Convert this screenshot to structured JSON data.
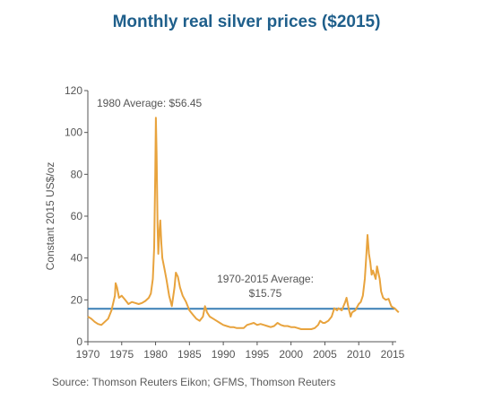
{
  "title": "Monthly real silver prices ($2015)",
  "source": "Source: Thomson Reuters Eikon; GFMS, Thomson Reuters",
  "colors": {
    "title": "#1f5f8b",
    "price_line": "#e8a33d",
    "average_line": "#3a7fb5",
    "axis": "#555555"
  },
  "chart_data": {
    "type": "line",
    "ylabel": "Constant 2015 US$/oz",
    "xlabel": "",
    "xlim": [
      1970,
      2016
    ],
    "ylim": [
      0,
      120
    ],
    "x_ticks": [
      1970,
      1975,
      1980,
      1985,
      1990,
      1995,
      2000,
      2005,
      2010,
      2015
    ],
    "y_ticks": [
      0,
      20,
      40,
      60,
      80,
      100,
      120
    ],
    "grid": false,
    "series": [
      {
        "values": [
          [
            1970.0,
            12.0
          ],
          [
            1970.5,
            11.0
          ],
          [
            1971.0,
            9.5
          ],
          [
            1971.5,
            8.5
          ],
          [
            1972.0,
            8.0
          ],
          [
            1972.5,
            9.5
          ],
          [
            1973.0,
            11.0
          ],
          [
            1973.5,
            15.0
          ],
          [
            1974.0,
            22.0
          ],
          [
            1974.1,
            28.0
          ],
          [
            1974.3,
            26.0
          ],
          [
            1974.6,
            21.0
          ],
          [
            1975.0,
            22.0
          ],
          [
            1975.5,
            20.0
          ],
          [
            1976.0,
            18.0
          ],
          [
            1976.5,
            19.0
          ],
          [
            1977.0,
            18.5
          ],
          [
            1977.5,
            18.0
          ],
          [
            1978.0,
            18.5
          ],
          [
            1978.5,
            19.5
          ],
          [
            1979.0,
            21.0
          ],
          [
            1979.3,
            23.0
          ],
          [
            1979.6,
            30.0
          ],
          [
            1979.8,
            45.0
          ],
          [
            1979.95,
            80.0
          ],
          [
            1980.05,
            107.0
          ],
          [
            1980.15,
            90.0
          ],
          [
            1980.3,
            55.0
          ],
          [
            1980.4,
            42.0
          ],
          [
            1980.55,
            52.0
          ],
          [
            1980.7,
            58.0
          ],
          [
            1980.85,
            47.0
          ],
          [
            1981.0,
            40.0
          ],
          [
            1981.3,
            35.0
          ],
          [
            1981.6,
            30.0
          ],
          [
            1982.0,
            22.0
          ],
          [
            1982.4,
            17.0
          ],
          [
            1982.8,
            26.0
          ],
          [
            1983.0,
            33.0
          ],
          [
            1983.3,
            31.0
          ],
          [
            1983.6,
            26.0
          ],
          [
            1984.0,
            22.0
          ],
          [
            1984.5,
            19.0
          ],
          [
            1985.0,
            15.0
          ],
          [
            1985.5,
            13.0
          ],
          [
            1986.0,
            11.0
          ],
          [
            1986.5,
            10.0
          ],
          [
            1987.0,
            12.0
          ],
          [
            1987.3,
            17.0
          ],
          [
            1987.6,
            14.0
          ],
          [
            1988.0,
            12.0
          ],
          [
            1988.5,
            11.0
          ],
          [
            1989.0,
            10.0
          ],
          [
            1989.5,
            9.0
          ],
          [
            1990.0,
            8.0
          ],
          [
            1990.5,
            7.5
          ],
          [
            1991.0,
            7.0
          ],
          [
            1991.5,
            7.0
          ],
          [
            1992.0,
            6.5
          ],
          [
            1992.5,
            6.5
          ],
          [
            1993.0,
            6.5
          ],
          [
            1993.5,
            8.0
          ],
          [
            1994.0,
            8.5
          ],
          [
            1994.5,
            9.0
          ],
          [
            1995.0,
            8.0
          ],
          [
            1995.5,
            8.5
          ],
          [
            1996.0,
            8.0
          ],
          [
            1996.5,
            7.5
          ],
          [
            1997.0,
            7.0
          ],
          [
            1997.5,
            7.5
          ],
          [
            1998.0,
            9.0
          ],
          [
            1998.5,
            8.0
          ],
          [
            1999.0,
            7.5
          ],
          [
            1999.5,
            7.5
          ],
          [
            2000.0,
            7.0
          ],
          [
            2000.5,
            7.0
          ],
          [
            2001.0,
            6.5
          ],
          [
            2001.5,
            6.0
          ],
          [
            2002.0,
            6.0
          ],
          [
            2002.5,
            6.0
          ],
          [
            2003.0,
            6.0
          ],
          [
            2003.5,
            6.5
          ],
          [
            2004.0,
            8.0
          ],
          [
            2004.3,
            10.0
          ],
          [
            2004.7,
            9.0
          ],
          [
            2005.0,
            9.0
          ],
          [
            2005.5,
            10.0
          ],
          [
            2006.0,
            12.0
          ],
          [
            2006.4,
            16.0
          ],
          [
            2006.8,
            15.0
          ],
          [
            2007.0,
            16.0
          ],
          [
            2007.5,
            15.0
          ],
          [
            2008.0,
            19.0
          ],
          [
            2008.2,
            21.0
          ],
          [
            2008.5,
            16.0
          ],
          [
            2008.8,
            12.0
          ],
          [
            2009.0,
            14.0
          ],
          [
            2009.5,
            15.0
          ],
          [
            2010.0,
            18.0
          ],
          [
            2010.3,
            19.0
          ],
          [
            2010.6,
            22.0
          ],
          [
            2010.9,
            30.0
          ],
          [
            2011.1,
            40.0
          ],
          [
            2011.3,
            51.0
          ],
          [
            2011.5,
            42.0
          ],
          [
            2011.7,
            38.0
          ],
          [
            2011.9,
            32.0
          ],
          [
            2012.1,
            34.0
          ],
          [
            2012.3,
            32.0
          ],
          [
            2012.5,
            30.0
          ],
          [
            2012.7,
            36.0
          ],
          [
            2012.9,
            33.0
          ],
          [
            2013.1,
            30.0
          ],
          [
            2013.3,
            24.0
          ],
          [
            2013.6,
            21.0
          ],
          [
            2014.0,
            20.0
          ],
          [
            2014.4,
            20.5
          ],
          [
            2014.8,
            17.0
          ],
          [
            2015.0,
            16.5
          ],
          [
            2015.3,
            16.0
          ],
          [
            2015.6,
            15.0
          ],
          [
            2015.9,
            14.0
          ]
        ],
        "color": "#e8a33d"
      }
    ],
    "reference_lines": [
      {
        "y": 15.75,
        "color": "#3a7fb5"
      }
    ],
    "annotations": [
      {
        "text": "1980 Average: $56.45"
      },
      {
        "text": "1970-2015 Average:"
      },
      {
        "text": "$15.75"
      }
    ]
  }
}
